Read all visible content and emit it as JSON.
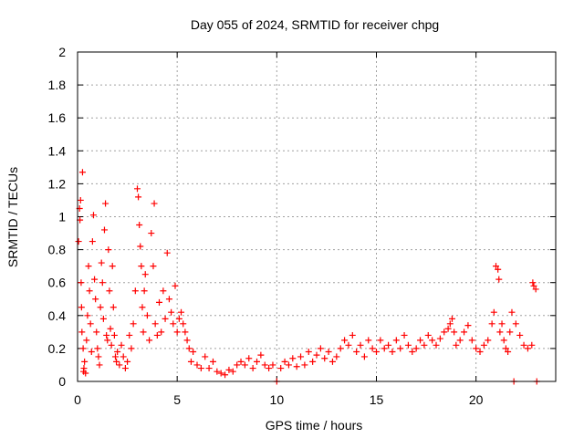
{
  "chart_data": {
    "type": "scatter",
    "title": "Day 055 of 2024, SRMTID for receiver chpg",
    "xlabel": "GPS time / hours",
    "ylabel": "SRMTID / TECUs",
    "xlim": [
      0,
      24
    ],
    "ylim": [
      0,
      2
    ],
    "xticks": [
      0,
      5,
      10,
      15,
      20
    ],
    "xtick_labels": [
      "0",
      "5",
      "10",
      "15",
      "20"
    ],
    "yticks": [
      0,
      0.2,
      0.4,
      0.6,
      0.8,
      1,
      1.2,
      1.4,
      1.6,
      1.8,
      2
    ],
    "ytick_labels": [
      "0",
      "0.2",
      "0.4",
      "0.6",
      "0.8",
      "1",
      "1.2",
      "1.4",
      "1.6",
      "1.8",
      "2"
    ],
    "grid": true,
    "legend": "none",
    "marker": "+",
    "series": [
      {
        "name": "SRMTID",
        "color": "#ff0000",
        "points": [
          [
            0.05,
            0.85
          ],
          [
            0.1,
            1.05
          ],
          [
            0.12,
            0.98
          ],
          [
            0.15,
            1.1
          ],
          [
            0.18,
            0.6
          ],
          [
            0.2,
            0.45
          ],
          [
            0.22,
            0.3
          ],
          [
            0.25,
            1.27
          ],
          [
            0.28,
            0.2
          ],
          [
            0.3,
            0.06
          ],
          [
            0.32,
            0.08
          ],
          [
            0.35,
            0.12
          ],
          [
            0.4,
            0.05
          ],
          [
            0.45,
            0.25
          ],
          [
            0.5,
            0.4
          ],
          [
            0.55,
            0.7
          ],
          [
            0.6,
            0.55
          ],
          [
            0.65,
            0.35
          ],
          [
            0.7,
            0.18
          ],
          [
            0.75,
            0.85
          ],
          [
            0.8,
            1.01
          ],
          [
            0.85,
            0.62
          ],
          [
            0.9,
            0.5
          ],
          [
            0.95,
            0.3
          ],
          [
            1.0,
            0.2
          ],
          [
            1.05,
            0.15
          ],
          [
            1.1,
            0.1
          ],
          [
            1.15,
            0.45
          ],
          [
            1.2,
            0.72
          ],
          [
            1.25,
            0.6
          ],
          [
            1.3,
            0.38
          ],
          [
            1.35,
            0.92
          ],
          [
            1.4,
            1.08
          ],
          [
            1.45,
            0.28
          ],
          [
            1.5,
            0.25
          ],
          [
            1.55,
            0.8
          ],
          [
            1.6,
            0.55
          ],
          [
            1.65,
            0.32
          ],
          [
            1.7,
            0.22
          ],
          [
            1.75,
            0.7
          ],
          [
            1.8,
            0.45
          ],
          [
            1.85,
            0.28
          ],
          [
            1.9,
            0.15
          ],
          [
            1.95,
            0.12
          ],
          [
            2.0,
            0.18
          ],
          [
            2.1,
            0.1
          ],
          [
            2.2,
            0.22
          ],
          [
            2.3,
            0.15
          ],
          [
            2.4,
            0.08
          ],
          [
            2.5,
            0.12
          ],
          [
            2.6,
            0.28
          ],
          [
            2.7,
            0.2
          ],
          [
            2.8,
            0.35
          ],
          [
            2.9,
            0.55
          ],
          [
            3.0,
            1.17
          ],
          [
            3.05,
            1.12
          ],
          [
            3.1,
            0.95
          ],
          [
            3.15,
            0.82
          ],
          [
            3.2,
            0.7
          ],
          [
            3.25,
            0.45
          ],
          [
            3.3,
            0.3
          ],
          [
            3.35,
            0.55
          ],
          [
            3.4,
            0.65
          ],
          [
            3.5,
            0.4
          ],
          [
            3.6,
            0.25
          ],
          [
            3.7,
            0.9
          ],
          [
            3.8,
            0.7
          ],
          [
            3.85,
            1.08
          ],
          [
            3.9,
            0.35
          ],
          [
            4.0,
            0.28
          ],
          [
            4.1,
            0.48
          ],
          [
            4.2,
            0.3
          ],
          [
            4.3,
            0.55
          ],
          [
            4.4,
            0.38
          ],
          [
            4.5,
            0.78
          ],
          [
            4.6,
            0.5
          ],
          [
            4.7,
            0.42
          ],
          [
            4.8,
            0.35
          ],
          [
            4.9,
            0.58
          ],
          [
            5.0,
            0.3
          ],
          [
            5.1,
            0.38
          ],
          [
            5.2,
            0.42
          ],
          [
            5.3,
            0.35
          ],
          [
            5.4,
            0.3
          ],
          [
            5.5,
            0.25
          ],
          [
            5.6,
            0.2
          ],
          [
            5.7,
            0.12
          ],
          [
            5.8,
            0.18
          ],
          [
            6.0,
            0.1
          ],
          [
            6.2,
            0.08
          ],
          [
            6.4,
            0.15
          ],
          [
            6.6,
            0.08
          ],
          [
            6.8,
            0.12
          ],
          [
            7.0,
            0.06
          ],
          [
            7.2,
            0.05
          ],
          [
            7.4,
            0.04
          ],
          [
            7.6,
            0.07
          ],
          [
            7.8,
            0.06
          ],
          [
            8.0,
            0.1
          ],
          [
            8.2,
            0.12
          ],
          [
            8.4,
            0.1
          ],
          [
            8.6,
            0.14
          ],
          [
            8.8,
            0.08
          ],
          [
            9.0,
            0.12
          ],
          [
            9.2,
            0.16
          ],
          [
            9.4,
            0.1
          ],
          [
            9.6,
            0.08
          ],
          [
            9.8,
            0.1
          ],
          [
            10.0,
            0.0
          ],
          [
            10.2,
            0.08
          ],
          [
            10.4,
            0.12
          ],
          [
            10.6,
            0.1
          ],
          [
            10.8,
            0.14
          ],
          [
            11.0,
            0.09
          ],
          [
            11.2,
            0.15
          ],
          [
            11.4,
            0.1
          ],
          [
            11.6,
            0.18
          ],
          [
            11.8,
            0.12
          ],
          [
            12.0,
            0.16
          ],
          [
            12.2,
            0.2
          ],
          [
            12.4,
            0.14
          ],
          [
            12.6,
            0.18
          ],
          [
            12.8,
            0.12
          ],
          [
            13.0,
            0.15
          ],
          [
            13.2,
            0.2
          ],
          [
            13.4,
            0.25
          ],
          [
            13.6,
            0.22
          ],
          [
            13.8,
            0.28
          ],
          [
            14.0,
            0.18
          ],
          [
            14.2,
            0.22
          ],
          [
            14.4,
            0.15
          ],
          [
            14.6,
            0.25
          ],
          [
            14.8,
            0.2
          ],
          [
            15.0,
            0.18
          ],
          [
            15.2,
            0.25
          ],
          [
            15.4,
            0.2
          ],
          [
            15.6,
            0.22
          ],
          [
            15.8,
            0.18
          ],
          [
            16.0,
            0.25
          ],
          [
            16.2,
            0.2
          ],
          [
            16.4,
            0.28
          ],
          [
            16.6,
            0.22
          ],
          [
            16.8,
            0.18
          ],
          [
            17.0,
            0.2
          ],
          [
            17.2,
            0.25
          ],
          [
            17.4,
            0.22
          ],
          [
            17.6,
            0.28
          ],
          [
            17.8,
            0.25
          ],
          [
            18.0,
            0.22
          ],
          [
            18.2,
            0.26
          ],
          [
            18.4,
            0.3
          ],
          [
            18.6,
            0.32
          ],
          [
            18.7,
            0.35
          ],
          [
            18.8,
            0.38
          ],
          [
            18.9,
            0.3
          ],
          [
            19.0,
            0.22
          ],
          [
            19.2,
            0.25
          ],
          [
            19.4,
            0.3
          ],
          [
            19.6,
            0.34
          ],
          [
            19.8,
            0.25
          ],
          [
            20.0,
            0.2
          ],
          [
            20.2,
            0.18
          ],
          [
            20.4,
            0.22
          ],
          [
            20.6,
            0.25
          ],
          [
            20.8,
            0.35
          ],
          [
            20.9,
            0.42
          ],
          [
            21.0,
            0.7
          ],
          [
            21.1,
            0.68
          ],
          [
            21.15,
            0.62
          ],
          [
            21.2,
            0.3
          ],
          [
            21.3,
            0.35
          ],
          [
            21.4,
            0.25
          ],
          [
            21.5,
            0.2
          ],
          [
            21.6,
            0.18
          ],
          [
            21.7,
            0.3
          ],
          [
            21.8,
            0.42
          ],
          [
            21.9,
            0.0
          ],
          [
            22.0,
            0.35
          ],
          [
            22.2,
            0.28
          ],
          [
            22.4,
            0.22
          ],
          [
            22.6,
            0.2
          ],
          [
            22.8,
            0.22
          ],
          [
            22.85,
            0.6
          ],
          [
            22.9,
            0.58
          ],
          [
            23.0,
            0.56
          ],
          [
            23.05,
            0.0
          ]
        ]
      }
    ]
  }
}
